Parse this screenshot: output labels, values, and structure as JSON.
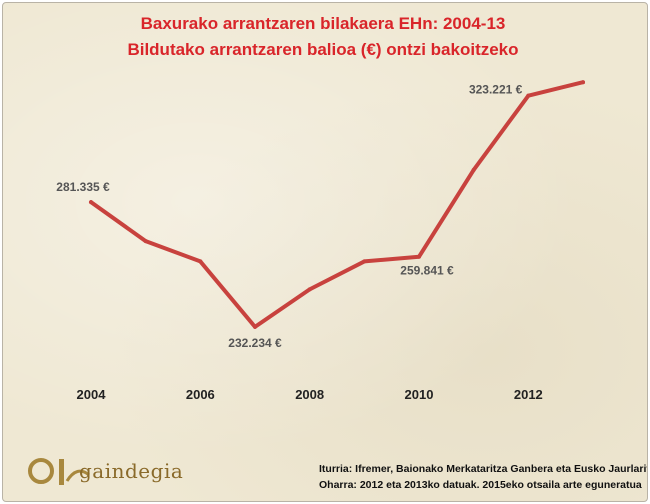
{
  "chart_data": {
    "type": "line",
    "title": "Baxurako arrantzaren bilakaera EHn: 2004-13",
    "subtitle": "Bildutako arrantzaren balioa (€) ontzi bakoitzeko",
    "x": [
      2004,
      2005,
      2006,
      2007,
      2008,
      2009,
      2010,
      2011,
      2012,
      2013
    ],
    "x_ticks": [
      "2004",
      "2006",
      "2008",
      "2010",
      "2012"
    ],
    "series": [
      {
        "values": [
          281335,
          266000,
          258000,
          232234,
          247000,
          258000,
          259841,
          294000,
          323221,
          328500
        ]
      }
    ],
    "data_labels": [
      {
        "index": 0,
        "text": "281.335 €"
      },
      {
        "index": 3,
        "text": "232.234 €"
      },
      {
        "index": 6,
        "text": "259.841 €"
      },
      {
        "index": 8,
        "text": "323.221 €"
      }
    ],
    "ylim": [
      220000,
      340000
    ],
    "grid": false,
    "line_color": "#c8423e"
  },
  "logo": {
    "text": "gaindegia"
  },
  "footer": {
    "source": "Iturria: Ifremer, Baionako Merkataritza Ganbera eta Eusko Jaurlaritza",
    "note": "Oharra: 2012 eta 2013ko datuak. 2015eko otsaila arte eguneratua"
  }
}
